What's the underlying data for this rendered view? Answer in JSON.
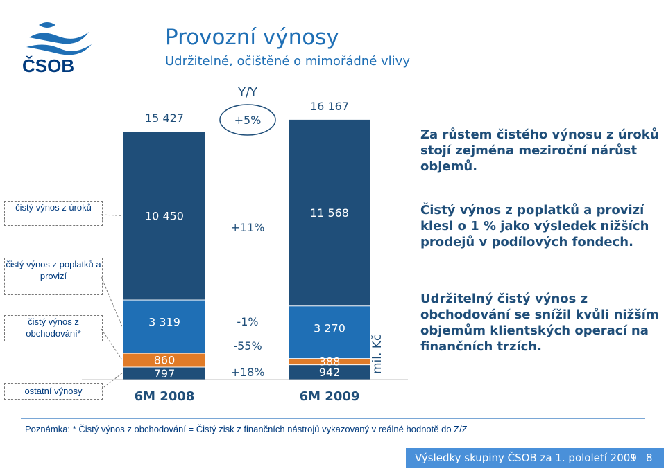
{
  "header": {
    "title": "Provozní výnosy",
    "subtitle": "Udržitelné, očištěné o mimořádné vlivy",
    "logo_text": "ČSOB"
  },
  "colors": {
    "blue": "#1f6fb5",
    "navy": "#1f4e79",
    "orange": "#e07b28",
    "ostatni": "#1f4e79"
  },
  "chart_data": {
    "type": "bar",
    "stacked": true,
    "unit_label": "mil. Kč",
    "categories": [
      "6M 2008",
      "6M 2009"
    ],
    "series": [
      {
        "name": "ostatní výnosy",
        "values": [
          797,
          942
        ]
      },
      {
        "name": "čistý výnos z obchodování*",
        "values": [
          860,
          388
        ]
      },
      {
        "name": "čistý výnos z poplatků a provizí",
        "values": [
          3319,
          3270
        ]
      },
      {
        "name": "čistý výnos z úroků",
        "values": [
          10450,
          11568
        ]
      }
    ],
    "totals": [
      15427,
      16167
    ],
    "total_labels": [
      "15 427",
      "16 167"
    ],
    "value_labels": {
      "ostatni": [
        "797",
        "942"
      ],
      "obchodovani": [
        "860",
        "388"
      ],
      "poplatky": [
        "3 319",
        "3 270"
      ],
      "uroky": [
        "10 450",
        "11 568"
      ]
    },
    "yy_header": "Y/Y",
    "yy_changes": {
      "total": "+5%",
      "uroky": "+11%",
      "poplatky": "-1%",
      "obchodovani": "-55%",
      "ostatni": "+18%"
    },
    "legend": [
      "čistý výnos z úroků",
      "čistý výnos z poplatků a provizí",
      "čistý výnos z obchodování*",
      "ostatní výnosy"
    ]
  },
  "commentary": {
    "p1": "Za růstem čistého výnosu z úroků stojí zejména meziroční nárůst objemů.",
    "p2": "Čistý výnos z poplatků a provizí klesl o 1 % jako výsledek nižších prodejů v podílových fondech.",
    "p3": "Udržitelný čistý výnos z obchodování se snížil kvůli nižším objemům klientských operací na finančních trzích."
  },
  "note": "Poznámka: * Čistý výnos z obchodování = Čistý zisk z finančních nástrojů vykazovaný v reálné hodnotě do Z/Z",
  "footer": {
    "text": "Výsledky skupiny ČSOB za 1. pololetí 2009",
    "separator": "I",
    "page": "8"
  }
}
